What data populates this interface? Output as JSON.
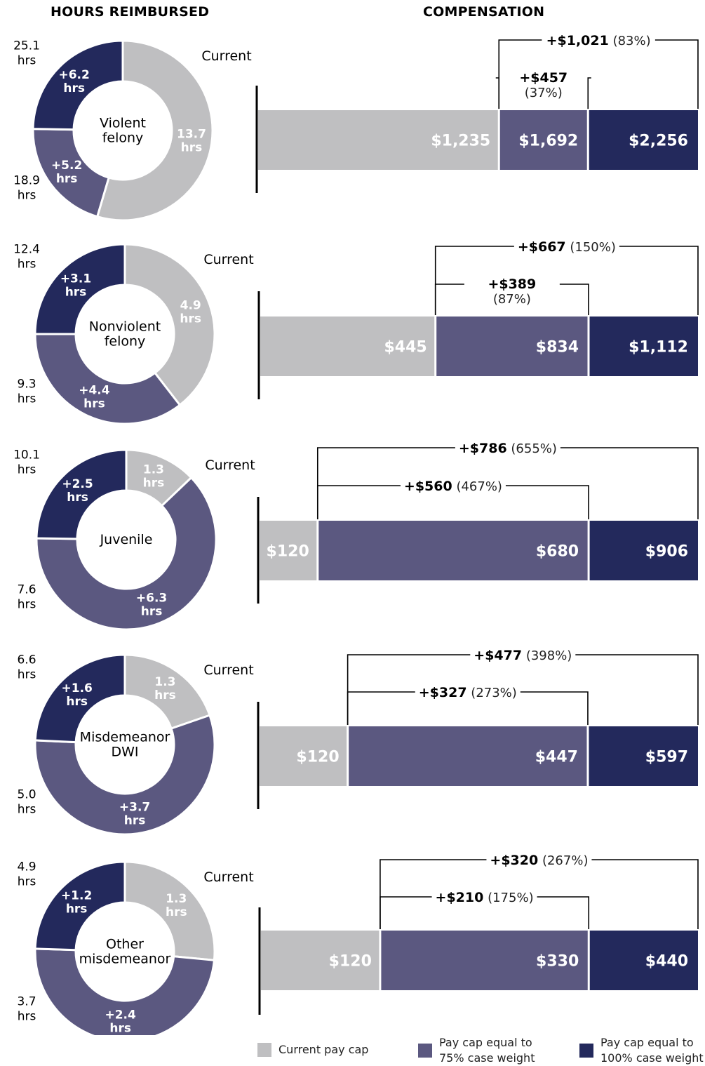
{
  "headers": {
    "left": "HOURS REIMBURSED",
    "right": "COMPENSATION"
  },
  "colors": {
    "current": "#bfbfc1",
    "p75": "#5b5880",
    "p100": "#23295c"
  },
  "current_label": "Current",
  "legend": [
    {
      "key": "current",
      "label": "Current pay cap"
    },
    {
      "key": "p75",
      "label": "Pay cap equal to 75% case weight"
    },
    {
      "key": "p100",
      "label": "Pay cap equal to 100% case weight"
    }
  ],
  "chart_data": [
    {
      "type": "donut",
      "category": "Violent felony",
      "segments": [
        {
          "key": "current",
          "value": 13.7,
          "label": "13.7 hrs"
        },
        {
          "key": "p75",
          "value": 5.2,
          "label": "+5.2 hrs"
        },
        {
          "key": "p100",
          "value": 6.2,
          "label": "+6.2 hrs"
        }
      ],
      "totals": [
        {
          "value": 25.1,
          "label": "25.1 hrs",
          "for": "p100"
        },
        {
          "value": 18.9,
          "label": "18.9 hrs",
          "for": "p75"
        }
      ]
    },
    {
      "type": "bar",
      "category": "Violent felony",
      "values": {
        "current": 1235,
        "p75": 1692,
        "p100": 2256
      },
      "labels": {
        "current": "$1,235",
        "p75": "$1,692",
        "p100": "$2,256"
      },
      "increase_p100": {
        "amount": "+$1,021",
        "pct": "(83%)"
      },
      "increase_p75": {
        "amount": "+$457",
        "pct": "(37%)"
      }
    },
    {
      "type": "donut",
      "category": "Nonviolent felony",
      "segments": [
        {
          "key": "current",
          "value": 4.9,
          "label": "4.9 hrs"
        },
        {
          "key": "p75",
          "value": 4.4,
          "label": "+4.4 hrs"
        },
        {
          "key": "p100",
          "value": 3.1,
          "label": "+3.1 hrs"
        }
      ],
      "totals": [
        {
          "value": 12.4,
          "label": "12.4 hrs",
          "for": "p100"
        },
        {
          "value": 9.3,
          "label": "9.3 hrs",
          "for": "p75"
        }
      ]
    },
    {
      "type": "bar",
      "category": "Nonviolent felony",
      "values": {
        "current": 445,
        "p75": 834,
        "p100": 1112
      },
      "labels": {
        "current": "$445",
        "p75": "$834",
        "p100": "$1,112"
      },
      "increase_p100": {
        "amount": "+$667",
        "pct": "(150%)"
      },
      "increase_p75": {
        "amount": "+$389",
        "pct": "(87%)"
      }
    },
    {
      "type": "donut",
      "category": "Juvenile",
      "segments": [
        {
          "key": "current",
          "value": 1.3,
          "label": "1.3 hrs"
        },
        {
          "key": "p75",
          "value": 6.3,
          "label": "+6.3 hrs"
        },
        {
          "key": "p100",
          "value": 2.5,
          "label": "+2.5 hrs"
        }
      ],
      "totals": [
        {
          "value": 10.1,
          "label": "10.1 hrs",
          "for": "p100"
        },
        {
          "value": 7.6,
          "label": "7.6 hrs",
          "for": "p75"
        }
      ]
    },
    {
      "type": "bar",
      "category": "Juvenile",
      "values": {
        "current": 120,
        "p75": 680,
        "p100": 906
      },
      "labels": {
        "current": "$120",
        "p75": "$680",
        "p100": "$906"
      },
      "increase_p100": {
        "amount": "+$786",
        "pct": "(655%)"
      },
      "increase_p75": {
        "amount": "+$560",
        "pct": "(467%)"
      }
    },
    {
      "type": "donut",
      "category": "Misdemeanor DWI",
      "segments": [
        {
          "key": "current",
          "value": 1.3,
          "label": "1.3 hrs"
        },
        {
          "key": "p75",
          "value": 3.7,
          "label": "+3.7 hrs"
        },
        {
          "key": "p100",
          "value": 1.6,
          "label": "+1.6 hrs"
        }
      ],
      "totals": [
        {
          "value": 6.6,
          "label": "6.6 hrs",
          "for": "p100"
        },
        {
          "value": 5.0,
          "label": "5.0 hrs",
          "for": "p75"
        }
      ]
    },
    {
      "type": "bar",
      "category": "Misdemeanor DWI",
      "values": {
        "current": 120,
        "p75": 447,
        "p100": 597
      },
      "labels": {
        "current": "$120",
        "p75": "$447",
        "p100": "$597"
      },
      "increase_p100": {
        "amount": "+$477",
        "pct": "(398%)"
      },
      "increase_p75": {
        "amount": "+$327",
        "pct": "(273%)"
      }
    },
    {
      "type": "donut",
      "category": "Other misdemeanor",
      "segments": [
        {
          "key": "current",
          "value": 1.3,
          "label": "1.3 hrs"
        },
        {
          "key": "p75",
          "value": 2.4,
          "label": "+2.4 hrs"
        },
        {
          "key": "p100",
          "value": 1.2,
          "label": "+1.2 hrs"
        }
      ],
      "totals": [
        {
          "value": 4.9,
          "label": "4.9 hrs",
          "for": "p100"
        },
        {
          "value": 3.7,
          "label": "3.7 hrs",
          "for": "p75"
        }
      ]
    },
    {
      "type": "bar",
      "category": "Other misdemeanor",
      "values": {
        "current": 120,
        "p75": 330,
        "p100": 440
      },
      "labels": {
        "current": "$120",
        "p75": "$330",
        "p100": "$440"
      },
      "increase_p100": {
        "amount": "+$320",
        "pct": "(267%)"
      },
      "increase_p75": {
        "amount": "+$210",
        "pct": "(175%)"
      }
    }
  ]
}
